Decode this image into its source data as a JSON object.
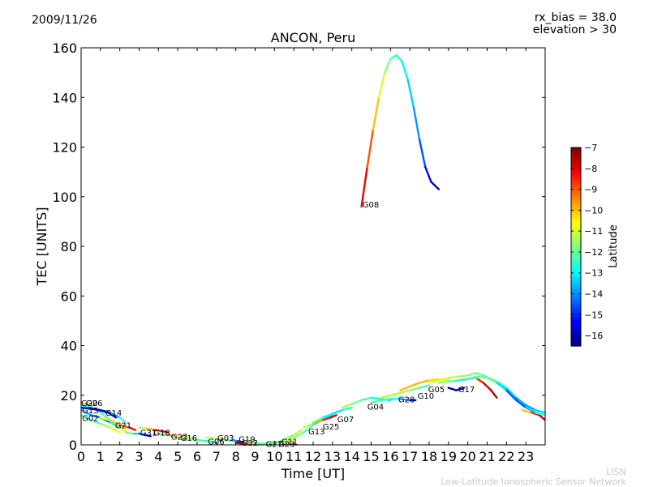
{
  "header": {
    "date": "2009/11/26",
    "rx_bias": "rx_bias = 38.0",
    "elevation": "elevation > 30"
  },
  "footer": {
    "short": "LISN",
    "long": "Low-Latitude Ionospheric Sensor Network"
  },
  "chart_data": {
    "type": "line",
    "title": "ANCON, Peru",
    "xlabel": "Time [UT]",
    "ylabel": "TEC [UNITS]",
    "xlim": [
      0,
      24
    ],
    "ylim": [
      0,
      160
    ],
    "xticks": [
      0,
      1,
      2,
      3,
      4,
      5,
      6,
      7,
      8,
      9,
      10,
      11,
      12,
      13,
      14,
      15,
      16,
      17,
      18,
      19,
      20,
      21,
      22,
      23
    ],
    "yticks": [
      0,
      20,
      40,
      60,
      80,
      100,
      120,
      140,
      160
    ],
    "grid": false,
    "colorbar": {
      "label": "Latitude",
      "min": -16.5,
      "max": -7,
      "ticks": [
        -7,
        -8,
        -9,
        -10,
        -11,
        -12,
        -13,
        -14,
        -15,
        -16
      ],
      "colormap": "jet"
    },
    "series": [
      {
        "name": "G08",
        "label_at": [
          14.55,
          97
        ],
        "points": [
          [
            14.5,
            96,
            -7.5
          ],
          [
            14.8,
            112,
            -8.5
          ],
          [
            15.1,
            127,
            -9.5
          ],
          [
            15.4,
            140,
            -10.5
          ],
          [
            15.7,
            150,
            -11.3
          ],
          [
            16.0,
            155.5,
            -12.0
          ],
          [
            16.3,
            157,
            -12.4
          ],
          [
            16.6,
            154.5,
            -12.8
          ],
          [
            16.9,
            147,
            -13.2
          ],
          [
            17.2,
            136,
            -13.6
          ],
          [
            17.5,
            123,
            -14.2
          ],
          [
            17.8,
            112,
            -14.9
          ],
          [
            18.1,
            106,
            -15.6
          ],
          [
            18.5,
            103,
            -16.3
          ]
        ]
      },
      {
        "name": "G20",
        "label_at": [
          0.0,
          17
        ],
        "points": [
          [
            0.0,
            17,
            -11.0
          ],
          [
            0.5,
            15.5,
            -11.5
          ],
          [
            1.0,
            13,
            -12.0
          ],
          [
            1.5,
            10,
            -12.5
          ],
          [
            2.0,
            7,
            -11.0
          ],
          [
            2.4,
            5,
            -10.0
          ]
        ]
      },
      {
        "name": "G26",
        "label_at": [
          0.25,
          17
        ],
        "points": [
          [
            0.0,
            16,
            -12.0
          ],
          [
            0.4,
            15,
            -14.0
          ],
          [
            0.9,
            14,
            -15.5
          ],
          [
            1.4,
            13,
            -16.0
          ],
          [
            1.8,
            11,
            -16.3
          ]
        ]
      },
      {
        "name": "G15",
        "label_at": [
          0.05,
          14
        ],
        "points": [
          [
            0.0,
            14,
            -13.0
          ],
          [
            0.5,
            12,
            -14.0
          ],
          [
            1.0,
            11,
            -14.5
          ],
          [
            1.5,
            9,
            -13.5
          ],
          [
            2.0,
            7,
            -12.0
          ]
        ]
      },
      {
        "name": "G02",
        "label_at": [
          0.05,
          11
        ],
        "points": [
          [
            0.0,
            12,
            -12.0
          ],
          [
            0.5,
            10,
            -12.5
          ],
          [
            1.0,
            8.5,
            -12.0
          ],
          [
            1.5,
            7,
            -11.0
          ],
          [
            2.0,
            5,
            -10.0
          ]
        ]
      },
      {
        "name": "G14",
        "label_at": [
          1.25,
          13
        ],
        "points": [
          [
            0.0,
            15,
            -15.0
          ],
          [
            0.5,
            14.5,
            -15.5
          ],
          [
            1.0,
            14,
            -16.0
          ],
          [
            1.5,
            13,
            -15.0
          ],
          [
            2.0,
            11,
            -12.5
          ],
          [
            2.3,
            9,
            -12.0
          ]
        ]
      },
      {
        "name": "G21",
        "label_at": [
          1.75,
          8
        ],
        "points": [
          [
            1.0,
            11,
            -11.0
          ],
          [
            1.5,
            10,
            -10.5
          ],
          [
            2.0,
            8,
            -9.5
          ],
          [
            2.5,
            7,
            -8.5
          ],
          [
            2.8,
            6,
            -8.0
          ]
        ]
      },
      {
        "name": "G31",
        "label_at": [
          3.05,
          5
        ],
        "points": [
          [
            2.3,
            5,
            -11.0
          ],
          [
            2.7,
            4.5,
            -12.5
          ],
          [
            3.0,
            4.5,
            -14.0
          ],
          [
            3.3,
            4,
            -15.5
          ],
          [
            3.6,
            3.5,
            -16.2
          ]
        ]
      },
      {
        "name": "G18",
        "label_at": [
          3.75,
          5
        ],
        "points": [
          [
            3.0,
            7,
            -12.0
          ],
          [
            3.4,
            6.5,
            -10.5
          ],
          [
            3.8,
            6,
            -9.0
          ],
          [
            4.2,
            5.5,
            -8.0
          ],
          [
            4.5,
            5,
            -7.5
          ]
        ]
      },
      {
        "name": "G22",
        "label_at": [
          4.65,
          3.5
        ],
        "points": [
          [
            4.0,
            4.5,
            -11.5
          ],
          [
            4.4,
            4,
            -12.5
          ],
          [
            4.8,
            3.5,
            -13.0
          ],
          [
            5.2,
            3,
            -13.5
          ]
        ]
      },
      {
        "name": "G16",
        "label_at": [
          5.15,
          3
        ],
        "points": [
          [
            4.5,
            4,
            -9.0
          ],
          [
            5.0,
            3.5,
            -10.0
          ],
          [
            5.5,
            3,
            -11.0
          ],
          [
            6.0,
            2,
            -12.0
          ]
        ]
      },
      {
        "name": "G06",
        "label_at": [
          6.55,
          1.5
        ],
        "points": [
          [
            5.5,
            2.5,
            -11.5
          ],
          [
            6.0,
            2,
            -12.0
          ],
          [
            6.5,
            1.5,
            -12.5
          ],
          [
            7.0,
            1,
            -13.0
          ]
        ]
      },
      {
        "name": "G03",
        "label_at": [
          7.05,
          3
        ],
        "points": [
          [
            6.5,
            3,
            -11.0
          ],
          [
            7.0,
            2.5,
            -11.5
          ],
          [
            7.5,
            2,
            -12.0
          ],
          [
            8.0,
            1.5,
            -12.5
          ]
        ]
      },
      {
        "name": "G19",
        "label_at": [
          8.15,
          2.5
        ],
        "points": [
          [
            7.8,
            2,
            -13.0
          ],
          [
            8.1,
            1.5,
            -14.5
          ],
          [
            8.4,
            1,
            -16.0
          ],
          [
            8.7,
            0.5,
            -16.3
          ]
        ]
      },
      {
        "name": "G32",
        "label_at": [
          8.3,
          1
        ],
        "points": [
          [
            8.0,
            0.8,
            -7.5
          ],
          [
            8.4,
            0.5,
            -8.0
          ],
          [
            8.8,
            0.5,
            -8.5
          ]
        ]
      },
      {
        "name": "G27",
        "label_at": [
          9.55,
          0.5
        ],
        "points": [
          [
            8.5,
            1,
            -11.0
          ],
          [
            9.0,
            0.5,
            -12.0
          ],
          [
            9.5,
            0.5,
            -12.5
          ],
          [
            10.0,
            0.5,
            -13.0
          ]
        ]
      },
      {
        "name": "G23",
        "label_at": [
          10.2,
          0.5
        ],
        "points": [
          [
            9.5,
            0.5,
            -12.0
          ],
          [
            10.0,
            1,
            -11.5
          ],
          [
            10.5,
            1.5,
            -11.0
          ],
          [
            11.0,
            2,
            -10.5
          ]
        ]
      },
      {
        "name": "G11",
        "label_at": [
          10.35,
          1.5
        ],
        "points": [
          [
            10.2,
            1,
            -12.5
          ],
          [
            10.6,
            2.5,
            -12.0
          ],
          [
            11.0,
            4,
            -11.5
          ],
          [
            11.4,
            6,
            -11.0
          ]
        ]
      },
      {
        "name": "G13",
        "label_at": [
          11.75,
          5.5
        ],
        "points": [
          [
            10.5,
            1,
            -11.0
          ],
          [
            11.0,
            3,
            -11.5
          ],
          [
            11.5,
            5,
            -12.0
          ],
          [
            12.0,
            8,
            -12.5
          ],
          [
            12.5,
            10,
            -13.0
          ],
          [
            13.0,
            12,
            -13.5
          ]
        ]
      },
      {
        "name": "G25",
        "label_at": [
          12.5,
          7.5
        ],
        "points": [
          [
            11.5,
            7,
            -12.0
          ],
          [
            12.0,
            8.5,
            -10.5
          ],
          [
            12.5,
            10,
            -9.0
          ],
          [
            12.9,
            11,
            -8.0
          ],
          [
            13.2,
            12,
            -7.5
          ]
        ]
      },
      {
        "name": "G07",
        "label_at": [
          13.25,
          10.5
        ],
        "points": [
          [
            12.0,
            9,
            -11.5
          ],
          [
            12.5,
            11,
            -12.5
          ],
          [
            13.0,
            12.5,
            -13.5
          ],
          [
            13.5,
            14,
            -13.0
          ],
          [
            14.0,
            15,
            -12.0
          ]
        ]
      },
      {
        "name": "G04",
        "label_at": [
          14.8,
          15.5
        ],
        "points": [
          [
            13.5,
            15,
            -11.0
          ],
          [
            14.0,
            16.5,
            -11.5
          ],
          [
            14.5,
            18,
            -12.0
          ],
          [
            15.0,
            19,
            -12.5
          ],
          [
            15.5,
            18.5,
            -13.0
          ],
          [
            16.0,
            18,
            -13.5
          ]
        ]
      },
      {
        "name": "G28",
        "label_at": [
          16.4,
          18.5
        ],
        "points": [
          [
            15.0,
            17,
            -12.0
          ],
          [
            15.5,
            18,
            -12.5
          ],
          [
            16.0,
            18.5,
            -12.5
          ],
          [
            16.5,
            18.5,
            -13.0
          ],
          [
            17.0,
            18,
            -14.5
          ],
          [
            17.3,
            18,
            -16.0
          ]
        ]
      },
      {
        "name": "G10",
        "label_at": [
          17.4,
          20
        ],
        "points": [
          [
            15.5,
            19,
            -11.0
          ],
          [
            16.0,
            20,
            -11.5
          ],
          [
            16.5,
            21,
            -11.0
          ],
          [
            17.0,
            22,
            -11.5
          ],
          [
            17.5,
            23,
            -12.0
          ],
          [
            18.0,
            24,
            -12.5
          ]
        ]
      },
      {
        "name": "G05",
        "label_at": [
          17.95,
          22.5
        ],
        "points": [
          [
            16.5,
            22,
            -10.0
          ],
          [
            17.0,
            23.5,
            -10.0
          ],
          [
            17.5,
            25,
            -9.8
          ],
          [
            18.0,
            26,
            -10.0
          ],
          [
            18.5,
            26.5,
            -10.5
          ],
          [
            19.0,
            26,
            -11.0
          ]
        ]
      },
      {
        "name": "G17",
        "label_at": [
          19.5,
          22.5
        ],
        "points": [
          [
            18.5,
            25,
            -11.5
          ],
          [
            19.0,
            25.5,
            -12.0
          ],
          [
            19.5,
            26,
            -12.5
          ],
          [
            20.0,
            26.5,
            -13.0
          ],
          [
            20.5,
            27.5,
            -12.5
          ],
          [
            21.0,
            27,
            -11.5
          ],
          [
            21.5,
            25,
            -12.5
          ],
          [
            22.0,
            22,
            -14.0
          ],
          [
            22.5,
            18,
            -15.0
          ],
          [
            23.0,
            15,
            -14.0
          ],
          [
            23.5,
            13,
            -13.0
          ],
          [
            24.0,
            12,
            -12.5
          ]
        ]
      }
    ],
    "extra_series": [
      {
        "points": [
          [
            18.0,
            25,
            -11.0
          ],
          [
            18.5,
            26,
            -10.8
          ],
          [
            19.0,
            27,
            -11.0
          ],
          [
            19.5,
            27.5,
            -11.3
          ],
          [
            20.0,
            28,
            -11.5
          ],
          [
            20.4,
            29,
            -11.8
          ],
          [
            20.8,
            28,
            -12.0
          ],
          [
            21.2,
            26.5,
            -12.2
          ],
          [
            21.6,
            25,
            -12.5
          ],
          [
            22.0,
            23,
            -12.8
          ],
          [
            22.5,
            19,
            -13.5
          ],
          [
            23.0,
            16,
            -14.0
          ],
          [
            23.5,
            14,
            -13.5
          ],
          [
            24.0,
            13,
            -13.0
          ]
        ]
      },
      {
        "points": [
          [
            19.0,
            23,
            -16.0
          ],
          [
            19.4,
            22,
            -16.3
          ],
          [
            19.8,
            23,
            -15.5
          ]
        ]
      },
      {
        "points": [
          [
            20.4,
            27,
            -9.0
          ],
          [
            20.8,
            25,
            -8.0
          ],
          [
            21.2,
            22,
            -7.5
          ],
          [
            21.5,
            19,
            -7.2
          ]
        ]
      },
      {
        "points": [
          [
            22.8,
            14,
            -11.0
          ],
          [
            23.3,
            13,
            -9.0
          ],
          [
            23.7,
            12,
            -8.0
          ],
          [
            24.0,
            10,
            -7.5
          ]
        ]
      },
      {
        "points": [
          [
            19.8,
            26,
            -9.5
          ],
          [
            20.2,
            27,
            -9.8
          ],
          [
            20.6,
            27,
            -10.2
          ]
        ]
      }
    ]
  }
}
